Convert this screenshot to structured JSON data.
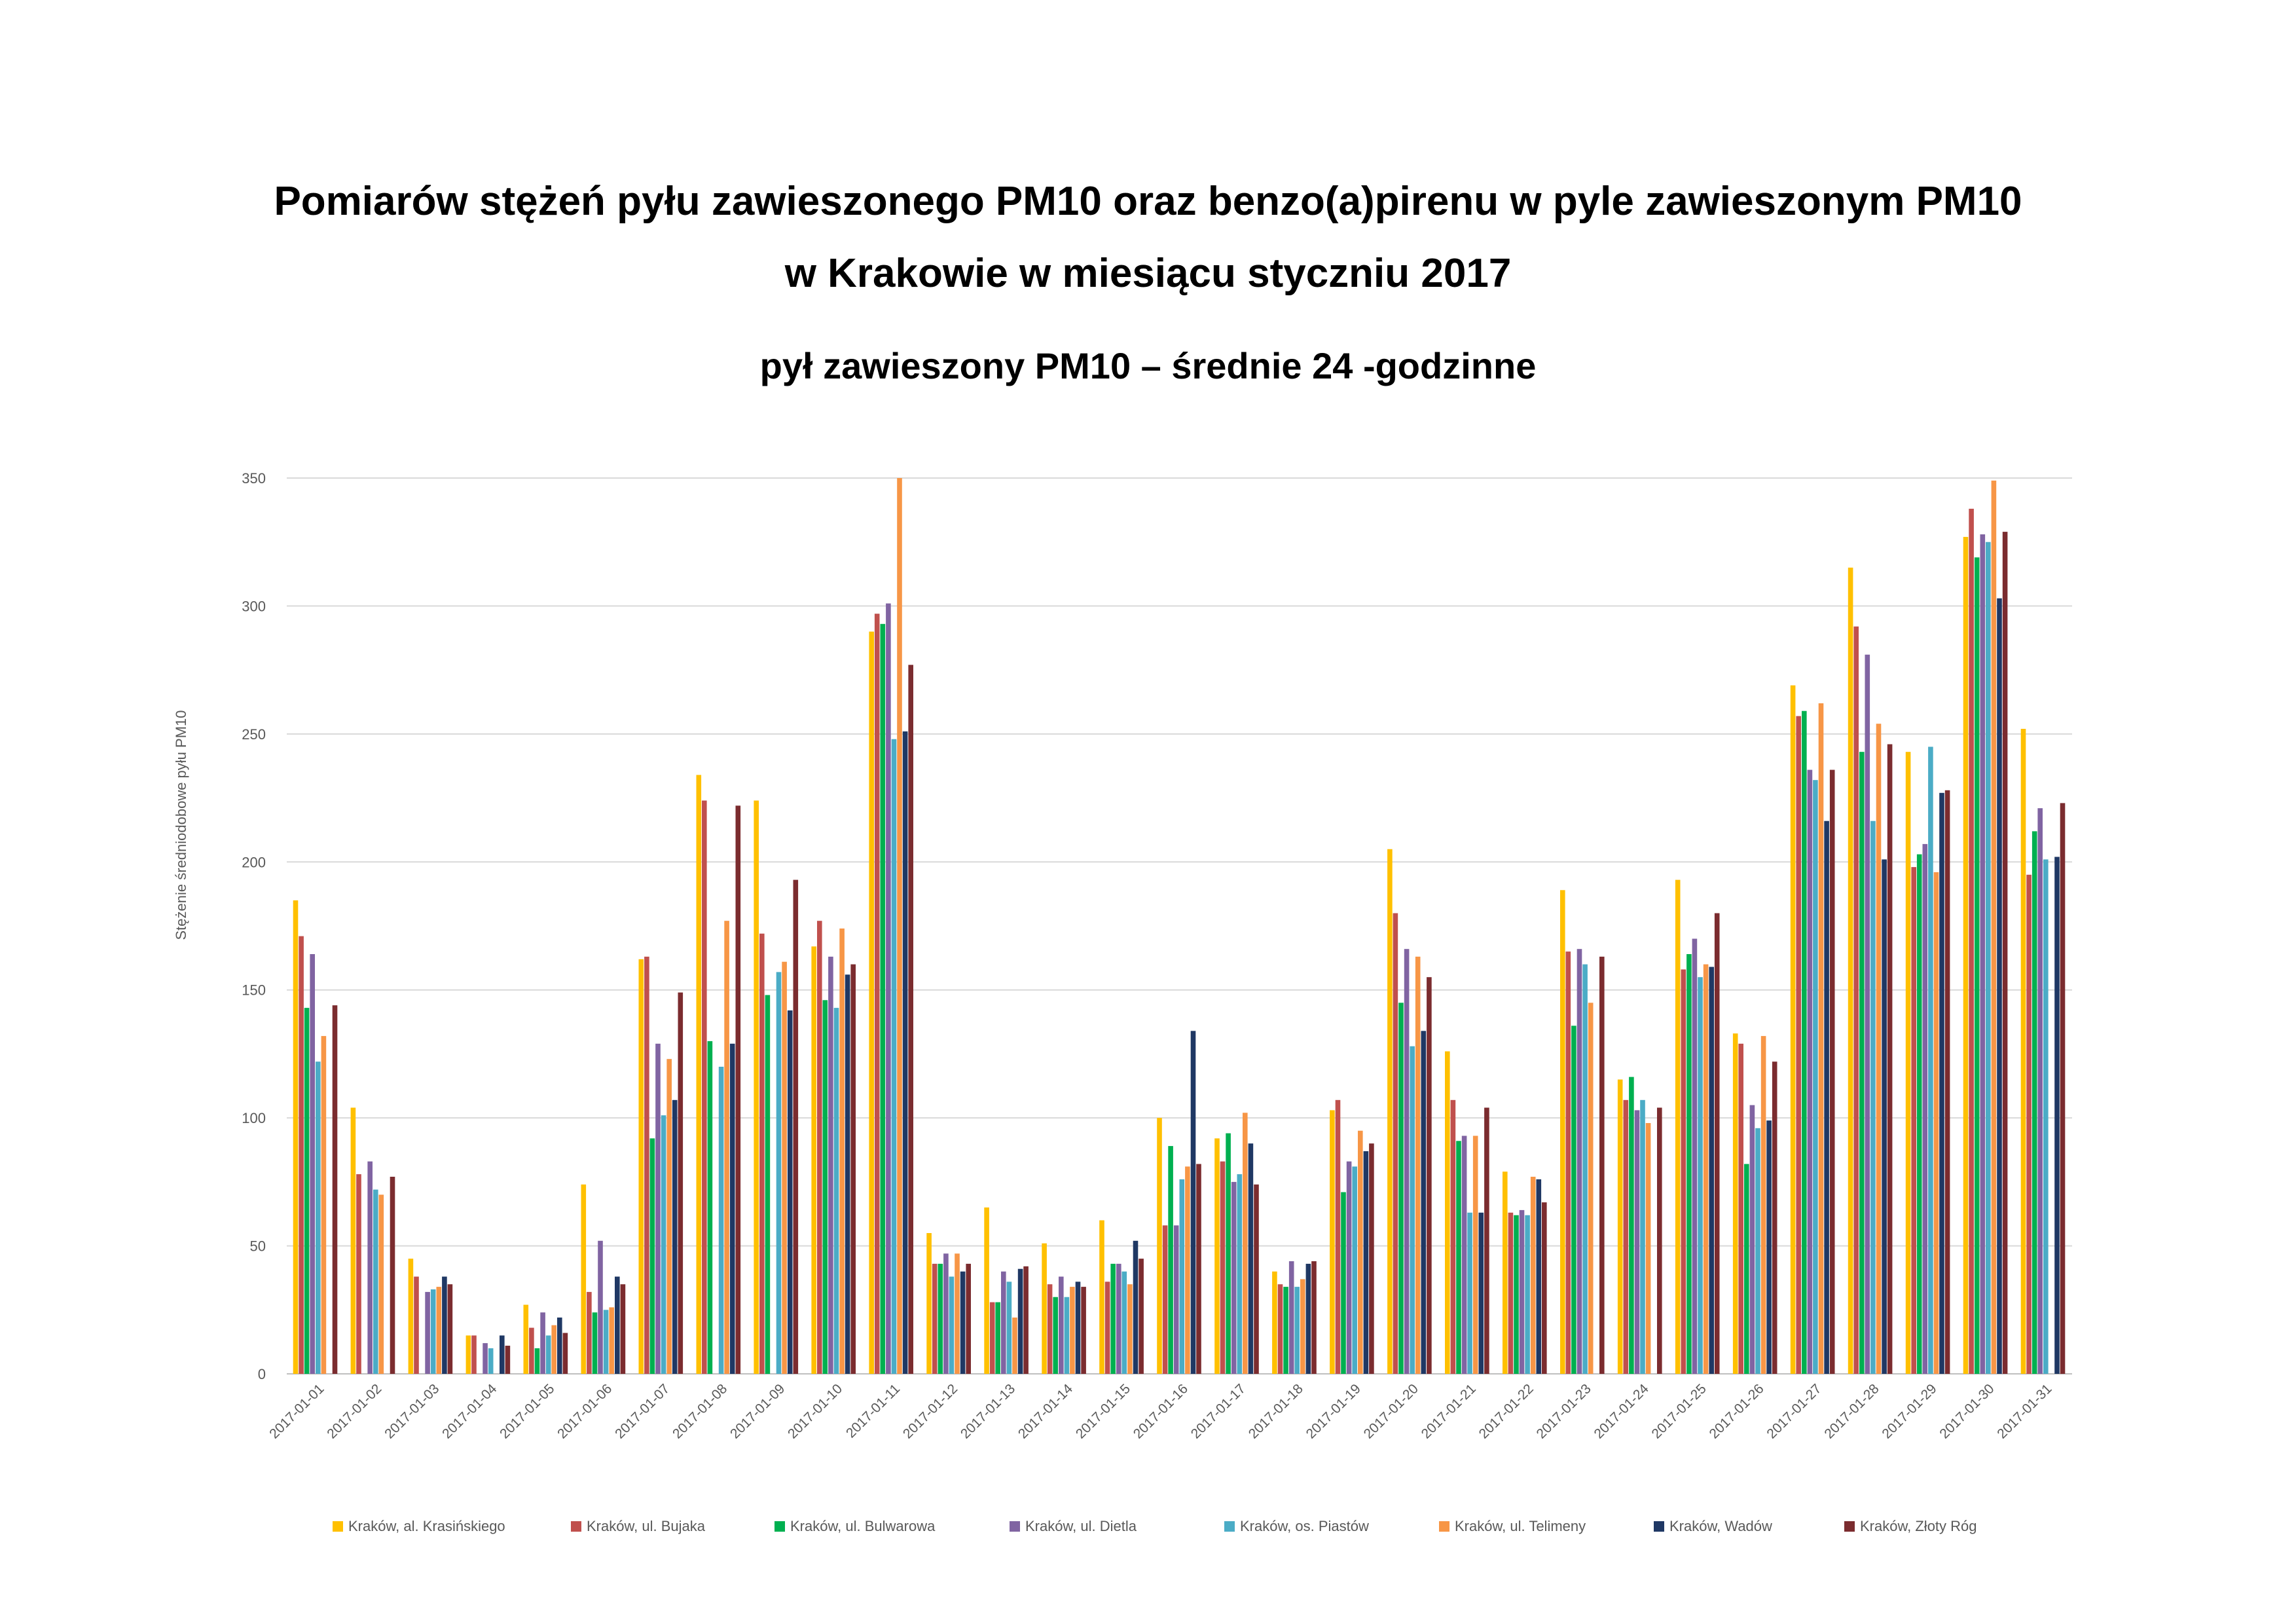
{
  "title_line1": "Pomiarów stężeń pyłu zawieszonego PM10 oraz benzo(a)pirenu  w  pyle zawieszonym PM10",
  "title_line2": "w  Krakowie w miesiącu styczniu  2017",
  "subtitle": "pył zawieszony PM10 – średnie 24 -godzinne",
  "chart_data": {
    "type": "bar",
    "ylabel": "Stężenie średniodobowe pyłu PM10",
    "xlabel": "",
    "ylim": [
      0,
      350
    ],
    "yticks": [
      0,
      50,
      100,
      150,
      200,
      250,
      300,
      350
    ],
    "grid": true,
    "legend_position": "bottom",
    "categories": [
      "2017-01-01",
      "2017-01-02",
      "2017-01-03",
      "2017-01-04",
      "2017-01-05",
      "2017-01-06",
      "2017-01-07",
      "2017-01-08",
      "2017-01-09",
      "2017-01-10",
      "2017-01-11",
      "2017-01-12",
      "2017-01-13",
      "2017-01-14",
      "2017-01-15",
      "2017-01-16",
      "2017-01-17",
      "2017-01-18",
      "2017-01-19",
      "2017-01-20",
      "2017-01-21",
      "2017-01-22",
      "2017-01-23",
      "2017-01-24",
      "2017-01-25",
      "2017-01-26",
      "2017-01-27",
      "2017-01-28",
      "2017-01-29",
      "2017-01-30",
      "2017-01-31"
    ],
    "series": [
      {
        "name": "Kraków, al. Krasińskiego",
        "color": "#FFC000",
        "values": [
          185,
          104,
          45,
          15,
          27,
          74,
          162,
          234,
          224,
          167,
          290,
          55,
          65,
          51,
          60,
          100,
          92,
          40,
          103,
          205,
          126,
          79,
          189,
          115,
          193,
          133,
          269,
          315,
          243,
          327,
          252
        ]
      },
      {
        "name": "Kraków, ul. Bujaka",
        "color": "#C0504D",
        "values": [
          171,
          78,
          38,
          15,
          18,
          32,
          163,
          224,
          172,
          177,
          297,
          43,
          28,
          35,
          36,
          58,
          83,
          35,
          107,
          180,
          107,
          63,
          165,
          107,
          158,
          129,
          257,
          292,
          198,
          338,
          195
        ]
      },
      {
        "name": "Kraków, ul. Bulwarowa",
        "color": "#00B050",
        "values": [
          143,
          null,
          null,
          null,
          10,
          24,
          92,
          130,
          148,
          146,
          293,
          43,
          28,
          30,
          43,
          89,
          94,
          34,
          71,
          145,
          91,
          62,
          136,
          116,
          164,
          82,
          259,
          243,
          203,
          319,
          212
        ]
      },
      {
        "name": "Kraków, ul. Dietla",
        "color": "#8064A2",
        "values": [
          164,
          83,
          32,
          12,
          24,
          52,
          129,
          null,
          null,
          163,
          301,
          47,
          40,
          38,
          43,
          58,
          75,
          44,
          83,
          166,
          93,
          64,
          166,
          103,
          170,
          105,
          236,
          281,
          207,
          328,
          221
        ]
      },
      {
        "name": "Kraków, os. Piastów",
        "color": "#4BACC6",
        "values": [
          122,
          72,
          33,
          10,
          15,
          25,
          101,
          120,
          157,
          143,
          248,
          38,
          36,
          30,
          40,
          76,
          78,
          34,
          81,
          128,
          63,
          62,
          160,
          107,
          155,
          96,
          232,
          216,
          245,
          325,
          201
        ]
      },
      {
        "name": "Kraków, ul. Telimeny",
        "color": "#F79646",
        "values": [
          132,
          70,
          34,
          null,
          19,
          26,
          123,
          177,
          161,
          174,
          350,
          47,
          22,
          34,
          35,
          81,
          102,
          37,
          95,
          163,
          93,
          77,
          145,
          98,
          160,
          132,
          262,
          254,
          196,
          349,
          null
        ]
      },
      {
        "name": "Kraków, Wadów",
        "color": "#1F3864",
        "values": [
          null,
          null,
          38,
          15,
          22,
          38,
          107,
          129,
          142,
          156,
          251,
          40,
          41,
          36,
          52,
          134,
          90,
          43,
          87,
          134,
          63,
          76,
          null,
          null,
          159,
          99,
          216,
          201,
          227,
          303,
          202
        ]
      },
      {
        "name": "Kraków, Złoty Róg",
        "color": "#7B2C2F",
        "values": [
          144,
          77,
          35,
          11,
          16,
          35,
          149,
          222,
          193,
          160,
          277,
          43,
          42,
          34,
          45,
          82,
          74,
          44,
          90,
          155,
          104,
          67,
          163,
          104,
          180,
          122,
          236,
          246,
          228,
          329,
          223
        ]
      }
    ]
  }
}
